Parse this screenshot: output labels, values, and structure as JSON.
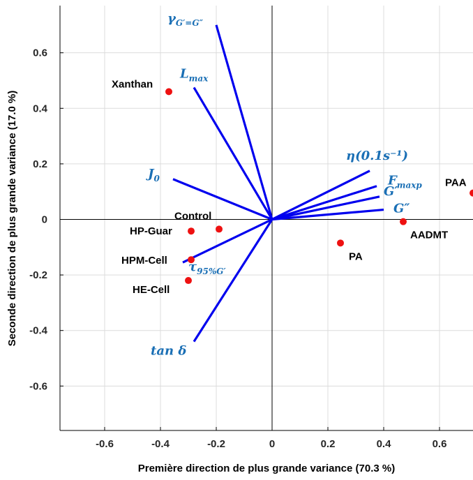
{
  "chart_data": {
    "type": "scatter",
    "subtype": "biplot",
    "title": "",
    "xlabel": "Première direction de plus grande variance (70.3 %)",
    "ylabel": "Seconde direction de plus grande variance (17.0 %)",
    "xlim": [
      -0.76,
      0.72
    ],
    "ylim": [
      -0.76,
      0.77
    ],
    "xticks": [
      -0.6,
      -0.4,
      -0.2,
      0,
      0.2,
      0.4,
      0.6
    ],
    "xtick_labels": [
      "-0.6",
      "-0.4",
      "-0.2",
      "0",
      "0.2",
      "0.4",
      "0.6"
    ],
    "yticks": [
      -0.6,
      -0.4,
      -0.2,
      0,
      0.2,
      0.4,
      0.6
    ],
    "ytick_labels": [
      "-0.6",
      "-0.4",
      "-0.2",
      "0",
      "0.2",
      "0.4",
      "0.6"
    ],
    "grid": true,
    "colors": {
      "vector": "#0000ee",
      "vector_label": "#1a6fb5",
      "point": "#ee1111",
      "axis": "#000000",
      "grid": "#dcdcdc"
    },
    "vectors": [
      {
        "label": "γG′=G″",
        "base": "γ",
        "sub": "G′=G″",
        "x": -0.2,
        "y": 0.7
      },
      {
        "label": "Lmax",
        "base": "L",
        "sub": "max",
        "x": -0.28,
        "y": 0.475
      },
      {
        "label": "J0",
        "base": "J",
        "sub": "0",
        "x": -0.355,
        "y": 0.145
      },
      {
        "label": "τ95%G′",
        "base": "τ",
        "sub": "95%G′",
        "x": -0.32,
        "y": -0.155
      },
      {
        "label": "tan δ",
        "base": "tan δ",
        "sub": "",
        "x": -0.28,
        "y": -0.44
      },
      {
        "label": "η(0.1s⁻¹)",
        "base": "η(0.1s⁻¹)",
        "sub": "",
        "x": 0.35,
        "y": 0.175
      },
      {
        "label": "Fmaxp",
        "base": "F",
        "sub": "maxp",
        "x": 0.375,
        "y": 0.12
      },
      {
        "label": "G′",
        "base": "G′",
        "sub": "",
        "x": 0.385,
        "y": 0.082
      },
      {
        "label": "G″",
        "base": "G″",
        "sub": "",
        "x": 0.4,
        "y": 0.035
      }
    ],
    "points": [
      {
        "label": "Xanthan",
        "x": -0.37,
        "y": 0.46
      },
      {
        "label": "Control",
        "x": -0.19,
        "y": -0.035
      },
      {
        "label": "HP-Guar",
        "x": -0.29,
        "y": -0.042
      },
      {
        "label": "HPM-Cell",
        "x": -0.29,
        "y": -0.145
      },
      {
        "label": "HE-Cell",
        "x": -0.3,
        "y": -0.22
      },
      {
        "label": "PA",
        "x": 0.245,
        "y": -0.085
      },
      {
        "label": "AADMT",
        "x": 0.47,
        "y": -0.008
      },
      {
        "label": "PAA",
        "x": 0.72,
        "y": 0.095
      }
    ]
  }
}
